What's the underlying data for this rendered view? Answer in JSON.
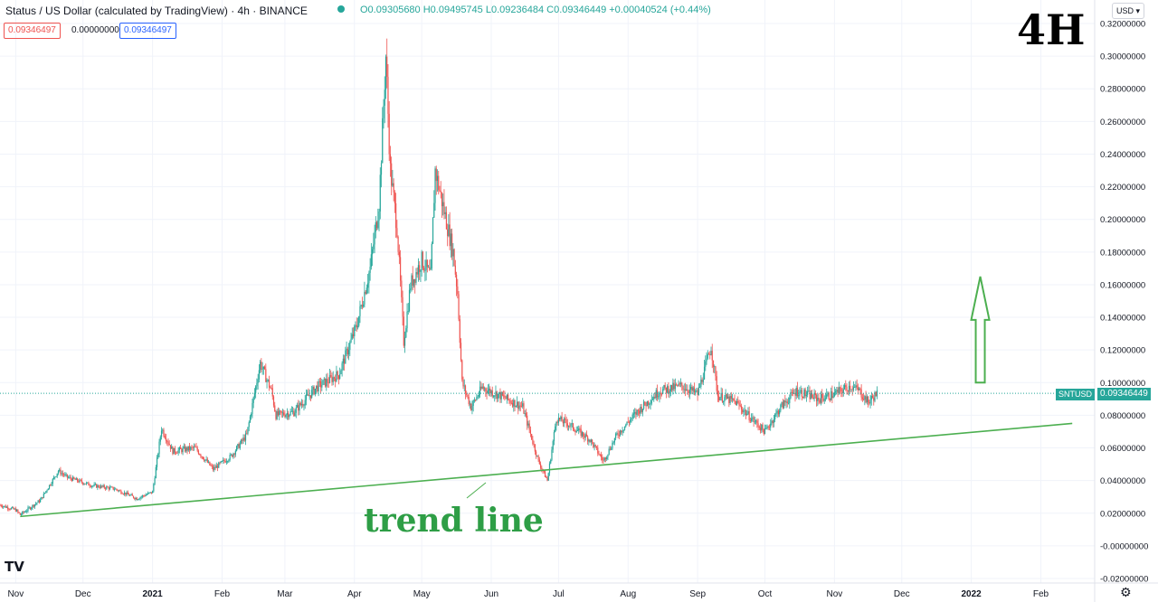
{
  "legend": {
    "title": "Status / US Dollar (calculated by TradingView) · 4h · BINANCE",
    "ohlc": "O0.09305680 H0.09495745 L0.09236484 C0.09346449 +0.00040524 (+0.44%)",
    "values": [
      "0.09346497",
      "0.00000000",
      "0.09346497"
    ]
  },
  "currency": "USD",
  "timeframe_label": "4H",
  "annotation": "trend line",
  "last_price": {
    "symbol": "SNTUSD",
    "value": "0.09346449"
  },
  "colors": {
    "up": "#26a69a",
    "down": "#ef5350",
    "trend": "#4caf50",
    "grid": "#f0f3fa",
    "axis_text": "#131722"
  },
  "icons": {
    "logo": "tradingview-logo-icon",
    "settings": "gear-icon"
  },
  "chart_data": {
    "type": "candlestick",
    "x_ticks": [
      "Nov",
      "Dec",
      "2021",
      "Feb",
      "Mar",
      "Apr",
      "May",
      "Jun",
      "Jul",
      "Aug",
      "Sep",
      "Oct",
      "Nov",
      "Dec",
      "2022",
      "Feb"
    ],
    "y_ticks": [
      "0.32000000",
      "0.30000000",
      "0.28000000",
      "0.26000000",
      "0.24000000",
      "0.22000000",
      "0.20000000",
      "0.18000000",
      "0.16000000",
      "0.14000000",
      "0.12000000",
      "0.10000000",
      "0.08000000",
      "0.06000000",
      "0.04000000",
      "0.02000000",
      "-0.00000000",
      "-0.02000000"
    ],
    "ylim": [
      -0.02,
      0.32
    ],
    "x_range": [
      "2020-10-25",
      "2022-02-25"
    ],
    "close_path": [
      [
        "2020-10-25",
        0.025
      ],
      [
        "2020-11-01",
        0.022
      ],
      [
        "2020-11-03",
        0.019
      ],
      [
        "2020-11-12",
        0.028
      ],
      [
        "2020-11-20",
        0.046
      ],
      [
        "2020-11-24",
        0.042
      ],
      [
        "2020-12-05",
        0.037
      ],
      [
        "2020-12-15",
        0.035
      ],
      [
        "2020-12-25",
        0.029
      ],
      [
        "2021-01-01",
        0.033
      ],
      [
        "2021-01-05",
        0.072
      ],
      [
        "2021-01-10",
        0.058
      ],
      [
        "2021-01-20",
        0.06
      ],
      [
        "2021-01-28",
        0.047
      ],
      [
        "2021-02-05",
        0.055
      ],
      [
        "2021-02-12",
        0.068
      ],
      [
        "2021-02-18",
        0.112
      ],
      [
        "2021-02-23",
        0.095
      ],
      [
        "2021-02-25",
        0.08
      ],
      [
        "2021-03-05",
        0.082
      ],
      [
        "2021-03-15",
        0.097
      ],
      [
        "2021-03-25",
        0.105
      ],
      [
        "2021-04-02",
        0.135
      ],
      [
        "2021-04-08",
        0.17
      ],
      [
        "2021-04-12",
        0.21
      ],
      [
        "2021-04-15",
        0.3
      ],
      [
        "2021-04-17",
        0.23
      ],
      [
        "2021-04-20",
        0.195
      ],
      [
        "2021-04-23",
        0.125
      ],
      [
        "2021-04-26",
        0.16
      ],
      [
        "2021-05-01",
        0.175
      ],
      [
        "2021-05-05",
        0.165
      ],
      [
        "2021-05-07",
        0.23
      ],
      [
        "2021-05-11",
        0.205
      ],
      [
        "2021-05-15",
        0.18
      ],
      [
        "2021-05-17",
        0.155
      ],
      [
        "2021-05-19",
        0.1
      ],
      [
        "2021-05-23",
        0.085
      ],
      [
        "2021-05-28",
        0.097
      ],
      [
        "2021-06-05",
        0.092
      ],
      [
        "2021-06-15",
        0.085
      ],
      [
        "2021-06-22",
        0.052
      ],
      [
        "2021-06-26",
        0.04
      ],
      [
        "2021-06-30",
        0.078
      ],
      [
        "2021-07-05",
        0.075
      ],
      [
        "2021-07-15",
        0.065
      ],
      [
        "2021-07-21",
        0.052
      ],
      [
        "2021-07-27",
        0.068
      ],
      [
        "2021-08-05",
        0.082
      ],
      [
        "2021-08-15",
        0.095
      ],
      [
        "2021-08-25",
        0.098
      ],
      [
        "2021-09-01",
        0.093
      ],
      [
        "2021-09-07",
        0.122
      ],
      [
        "2021-09-10",
        0.092
      ],
      [
        "2021-09-18",
        0.088
      ],
      [
        "2021-09-25",
        0.078
      ],
      [
        "2021-10-01",
        0.07
      ],
      [
        "2021-10-08",
        0.085
      ],
      [
        "2021-10-15",
        0.095
      ],
      [
        "2021-10-25",
        0.09
      ],
      [
        "2021-11-01",
        0.093
      ],
      [
        "2021-11-08",
        0.098
      ],
      [
        "2021-11-12",
        0.095
      ],
      [
        "2021-11-16",
        0.088
      ],
      [
        "2021-11-20",
        0.0935
      ]
    ],
    "trend_line": {
      "from": [
        "2020-11-03",
        0.018
      ],
      "to": [
        "2022-02-15",
        0.075
      ]
    },
    "arrow": {
      "date": "2022-01-05",
      "from": 0.1,
      "to": 0.165
    }
  }
}
